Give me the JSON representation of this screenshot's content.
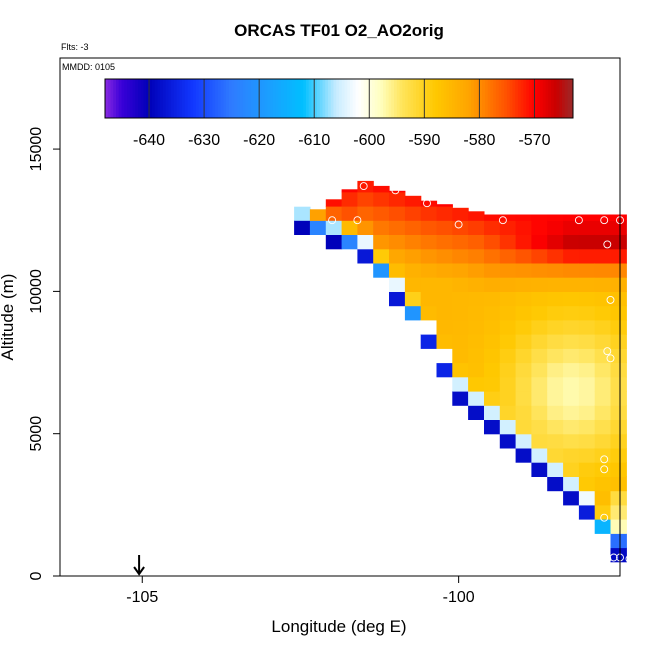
{
  "chart_data": {
    "type": "heatmap",
    "title": "ORCAS TF01 O2_AO2orig",
    "flights_label": "Flts: -3",
    "date_label": "MMDD: 0105",
    "xlabel": "Longitude (deg E)",
    "ylabel": "Altitude (m)",
    "xlim": [
      -106.3,
      -97.45
    ],
    "ylim": [
      0,
      18200
    ],
    "x_ticks": [
      -105,
      -100
    ],
    "x_tick_labels": [
      "-105",
      "-100"
    ],
    "y_ticks": [
      0,
      5000,
      10000,
      15000
    ],
    "y_tick_labels": [
      "0",
      "5000",
      "10000",
      "15000"
    ],
    "colorbar": {
      "range": [
        -648,
        -563
      ],
      "ticks": [
        -640,
        -630,
        -620,
        -610,
        -600,
        -590,
        -580,
        -570
      ],
      "tick_labels": [
        "-640",
        "-630",
        "-620",
        "-610",
        "-600",
        "-590",
        "-580",
        "-570"
      ],
      "stops": [
        {
          "v": -648,
          "color": "#8a2be2"
        },
        {
          "v": -645,
          "color": "#3a00d8"
        },
        {
          "v": -640,
          "color": "#0000b8"
        },
        {
          "v": -632,
          "color": "#1238ff"
        },
        {
          "v": -625,
          "color": "#2f7bff"
        },
        {
          "v": -618,
          "color": "#1aa0ff"
        },
        {
          "v": -612,
          "color": "#00bfff"
        },
        {
          "v": -606,
          "color": "#c8ecff"
        },
        {
          "v": -602,
          "color": "#ffffff"
        },
        {
          "v": -598,
          "color": "#ffffc0"
        },
        {
          "v": -594,
          "color": "#ffe45a"
        },
        {
          "v": -588,
          "color": "#ffc800"
        },
        {
          "v": -582,
          "color": "#ffa500"
        },
        {
          "v": -575,
          "color": "#ff5000"
        },
        {
          "v": -570,
          "color": "#ff0000"
        },
        {
          "v": -566,
          "color": "#c80000"
        },
        {
          "v": -563,
          "color": "#9b2a2a"
        }
      ]
    },
    "field": {
      "x_min": -102.6,
      "x_max": -97.45,
      "dx": 0.25,
      "y_max": 12700,
      "dy": 500,
      "edge_points": [
        {
          "x": -102.5,
          "y": 12500
        },
        {
          "x": -101.5,
          "y": 11500
        },
        {
          "x": -100.5,
          "y": 8500
        },
        {
          "x": -100.0,
          "y": 6500
        },
        {
          "x": -99.0,
          "y": 4500
        },
        {
          "x": -98.0,
          "y": 2500
        },
        {
          "x": -97.7,
          "y": 1500
        },
        {
          "x": -97.45,
          "y": 500
        }
      ],
      "top_points": [
        {
          "x": -102.5,
          "y": 12500
        },
        {
          "x": -101.5,
          "y": 13900
        },
        {
          "x": -100.5,
          "y": 13200
        },
        {
          "x": -99.5,
          "y": 12700
        },
        {
          "x": -97.45,
          "y": 12700
        }
      ],
      "top_value": -571,
      "upper_band_value": -566,
      "upper_band_y": 11800,
      "mid_value": -585,
      "warm_core": {
        "x": -98.2,
        "y": 6500,
        "value": -598
      },
      "lower_band_value": -600,
      "low_edge_value": -625,
      "bottom_value": -645
    },
    "markers": [
      {
        "x": -101.5,
        "y": 13700
      },
      {
        "x": -101.0,
        "y": 13550
      },
      {
        "x": -100.5,
        "y": 13100
      },
      {
        "x": -100.0,
        "y": 12350
      },
      {
        "x": -102.0,
        "y": 12500
      },
      {
        "x": -101.6,
        "y": 12500
      },
      {
        "x": -99.3,
        "y": 12500
      },
      {
        "x": -98.1,
        "y": 12500
      },
      {
        "x": -97.7,
        "y": 12500
      },
      {
        "x": -97.45,
        "y": 12500
      },
      {
        "x": -97.65,
        "y": 11650
      },
      {
        "x": -97.6,
        "y": 9700
      },
      {
        "x": -97.65,
        "y": 7900
      },
      {
        "x": -97.6,
        "y": 7650
      },
      {
        "x": -97.7,
        "y": 4100
      },
      {
        "x": -97.7,
        "y": 3750
      },
      {
        "x": -97.7,
        "y": 2050
      },
      {
        "x": -97.65,
        "y": 600
      },
      {
        "x": -97.45,
        "y": 650
      },
      {
        "x": -97.55,
        "y": 650
      },
      {
        "x": -97.3,
        "y": 600
      }
    ],
    "arrow_marker": {
      "x": -105.05,
      "y": 0
    }
  }
}
